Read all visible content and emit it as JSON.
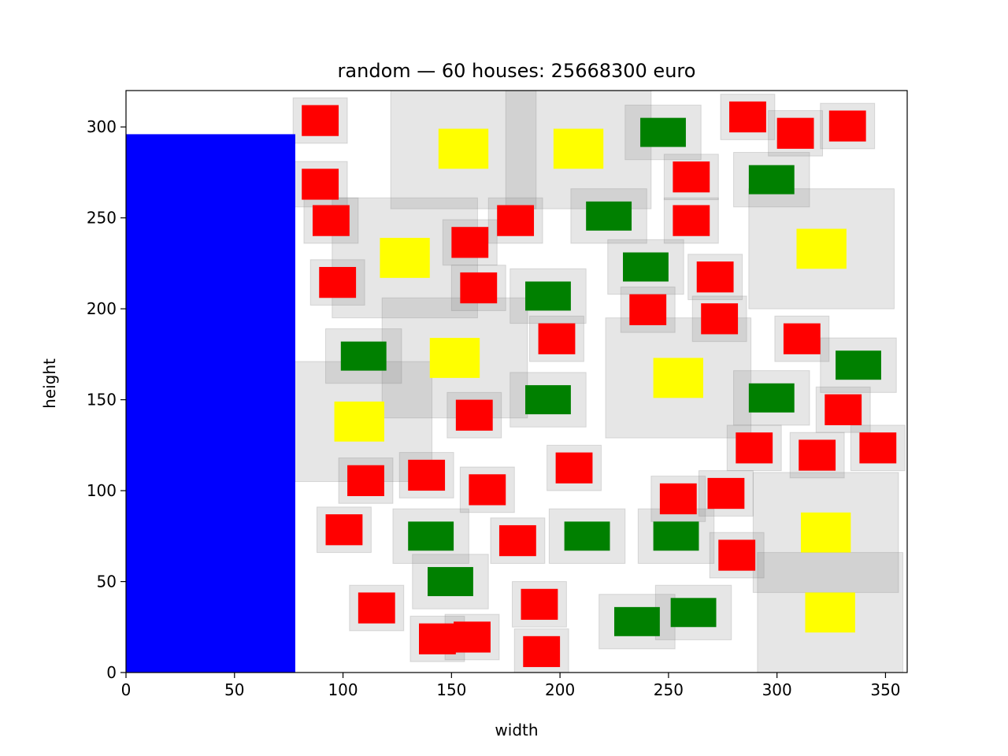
{
  "chart_data": {
    "type": "scatter",
    "title": "random — 60 houses: 25668300 euro",
    "xlabel": "width",
    "ylabel": "height",
    "xlim": [
      0,
      360
    ],
    "ylim": [
      0,
      320
    ],
    "xticks": [
      0,
      50,
      100,
      150,
      200,
      250,
      300,
      350
    ],
    "yticks": [
      0,
      50,
      100,
      150,
      200,
      250,
      300
    ],
    "grid": false,
    "colors": {
      "water": "#0000ff",
      "small_house": "#ff0000",
      "medium_house": "#008000",
      "large_house": "#ffff00",
      "free_space": "#808080"
    },
    "water": [
      {
        "x": 0,
        "y": 0,
        "width": 78,
        "height": 296
      }
    ],
    "houses": [
      {
        "type": "small",
        "x": 81,
        "y": 295,
        "width": 17,
        "height": 17,
        "margin": 4
      },
      {
        "type": "small",
        "x": 81,
        "y": 260,
        "width": 17,
        "height": 17,
        "margin": 4
      },
      {
        "type": "small",
        "x": 86,
        "y": 240,
        "width": 17,
        "height": 17,
        "margin": 4
      },
      {
        "type": "small",
        "x": 89,
        "y": 206,
        "width": 17,
        "height": 17,
        "margin": 4
      },
      {
        "type": "small",
        "x": 92,
        "y": 70,
        "width": 17,
        "height": 17,
        "margin": 4
      },
      {
        "type": "small",
        "x": 102,
        "y": 97,
        "width": 17,
        "height": 17,
        "margin": 4
      },
      {
        "type": "small",
        "x": 107,
        "y": 27,
        "width": 17,
        "height": 17,
        "margin": 4
      },
      {
        "type": "small",
        "x": 130,
        "y": 100,
        "width": 17,
        "height": 17,
        "margin": 4
      },
      {
        "type": "small",
        "x": 135,
        "y": 10,
        "width": 17,
        "height": 17,
        "margin": 4
      },
      {
        "type": "small",
        "x": 151,
        "y": 11,
        "width": 17,
        "height": 17,
        "margin": 4
      },
      {
        "type": "small",
        "x": 152,
        "y": 133,
        "width": 17,
        "height": 17,
        "margin": 4
      },
      {
        "type": "small",
        "x": 158,
        "y": 92,
        "width": 17,
        "height": 17,
        "margin": 4
      },
      {
        "type": "small",
        "x": 154,
        "y": 203,
        "width": 17,
        "height": 17,
        "margin": 4
      },
      {
        "type": "small",
        "x": 150,
        "y": 228,
        "width": 17,
        "height": 17,
        "margin": 4
      },
      {
        "type": "small",
        "x": 171,
        "y": 240,
        "width": 17,
        "height": 17,
        "margin": 4
      },
      {
        "type": "small",
        "x": 172,
        "y": 64,
        "width": 17,
        "height": 17,
        "margin": 4
      },
      {
        "type": "small",
        "x": 182,
        "y": 29,
        "width": 17,
        "height": 17,
        "margin": 4
      },
      {
        "type": "small",
        "x": 183,
        "y": 3,
        "width": 17,
        "height": 17,
        "margin": 4
      },
      {
        "type": "small",
        "x": 190,
        "y": 175,
        "width": 17,
        "height": 17,
        "margin": 4
      },
      {
        "type": "small",
        "x": 198,
        "y": 104,
        "width": 17,
        "height": 17,
        "margin": 4
      },
      {
        "type": "small",
        "x": 232,
        "y": 191,
        "width": 17,
        "height": 17,
        "margin": 4
      },
      {
        "type": "small",
        "x": 252,
        "y": 264,
        "width": 17,
        "height": 17,
        "margin": 4
      },
      {
        "type": "small",
        "x": 252,
        "y": 240,
        "width": 17,
        "height": 17,
        "margin": 4
      },
      {
        "type": "small",
        "x": 246,
        "y": 87,
        "width": 17,
        "height": 17,
        "margin": 4
      },
      {
        "type": "small",
        "x": 263,
        "y": 209,
        "width": 17,
        "height": 17,
        "margin": 4
      },
      {
        "type": "small",
        "x": 265,
        "y": 186,
        "width": 17,
        "height": 17,
        "margin": 4
      },
      {
        "type": "small",
        "x": 268,
        "y": 90,
        "width": 17,
        "height": 17,
        "margin": 4
      },
      {
        "type": "small",
        "x": 273,
        "y": 56,
        "width": 17,
        "height": 17,
        "margin": 4
      },
      {
        "type": "small",
        "x": 278,
        "y": 297,
        "width": 17,
        "height": 17,
        "margin": 4
      },
      {
        "type": "small",
        "x": 281,
        "y": 115,
        "width": 17,
        "height": 17,
        "margin": 4
      },
      {
        "type": "small",
        "x": 300,
        "y": 288,
        "width": 17,
        "height": 17,
        "margin": 4
      },
      {
        "type": "small",
        "x": 303,
        "y": 175,
        "width": 17,
        "height": 17,
        "margin": 4
      },
      {
        "type": "small",
        "x": 310,
        "y": 111,
        "width": 17,
        "height": 17,
        "margin": 4
      },
      {
        "type": "small",
        "x": 324,
        "y": 292,
        "width": 17,
        "height": 17,
        "margin": 4
      },
      {
        "type": "small",
        "x": 322,
        "y": 136,
        "width": 17,
        "height": 17,
        "margin": 4
      },
      {
        "type": "small",
        "x": 338,
        "y": 115,
        "width": 17,
        "height": 17,
        "margin": 4
      },
      {
        "type": "medium",
        "x": 99,
        "y": 166,
        "width": 21,
        "height": 16,
        "margin": 7
      },
      {
        "type": "medium",
        "x": 130,
        "y": 67,
        "width": 21,
        "height": 16,
        "margin": 7
      },
      {
        "type": "medium",
        "x": 139,
        "y": 42,
        "width": 21,
        "height": 16,
        "margin": 7
      },
      {
        "type": "medium",
        "x": 184,
        "y": 199,
        "width": 21,
        "height": 16,
        "margin": 7
      },
      {
        "type": "medium",
        "x": 184,
        "y": 142,
        "width": 21,
        "height": 16,
        "margin": 7
      },
      {
        "type": "medium",
        "x": 202,
        "y": 67,
        "width": 21,
        "height": 16,
        "margin": 7
      },
      {
        "type": "medium",
        "x": 212,
        "y": 243,
        "width": 21,
        "height": 16,
        "margin": 7
      },
      {
        "type": "medium",
        "x": 229,
        "y": 215,
        "width": 21,
        "height": 16,
        "margin": 7
      },
      {
        "type": "medium",
        "x": 237,
        "y": 289,
        "width": 21,
        "height": 16,
        "margin": 7
      },
      {
        "type": "medium",
        "x": 225,
        "y": 20,
        "width": 21,
        "height": 16,
        "margin": 7
      },
      {
        "type": "medium",
        "x": 243,
        "y": 67,
        "width": 21,
        "height": 16,
        "margin": 7
      },
      {
        "type": "medium",
        "x": 251,
        "y": 25,
        "width": 21,
        "height": 16,
        "margin": 7
      },
      {
        "type": "medium",
        "x": 287,
        "y": 263,
        "width": 21,
        "height": 16,
        "margin": 7
      },
      {
        "type": "medium",
        "x": 287,
        "y": 143,
        "width": 21,
        "height": 16,
        "margin": 7
      },
      {
        "type": "medium",
        "x": 327,
        "y": 161,
        "width": 21,
        "height": 16,
        "margin": 7
      },
      {
        "type": "large",
        "x": 96,
        "y": 127,
        "width": 23,
        "height": 22,
        "margin": 22
      },
      {
        "type": "large",
        "x": 117,
        "y": 217,
        "width": 23,
        "height": 22,
        "margin": 22
      },
      {
        "type": "large",
        "x": 140,
        "y": 162,
        "width": 23,
        "height": 22,
        "margin": 22
      },
      {
        "type": "large",
        "x": 144,
        "y": 277,
        "width": 23,
        "height": 22,
        "margin": 22
      },
      {
        "type": "large",
        "x": 197,
        "y": 277,
        "width": 23,
        "height": 22,
        "margin": 22
      },
      {
        "type": "large",
        "x": 243,
        "y": 151,
        "width": 23,
        "height": 22,
        "margin": 22
      },
      {
        "type": "large",
        "x": 309,
        "y": 222,
        "width": 23,
        "height": 22,
        "margin": 22
      },
      {
        "type": "large",
        "x": 311,
        "y": 66,
        "width": 23,
        "height": 22,
        "margin": 22
      },
      {
        "type": "large",
        "x": 313,
        "y": 22,
        "width": 23,
        "height": 22,
        "margin": 22
      }
    ]
  }
}
